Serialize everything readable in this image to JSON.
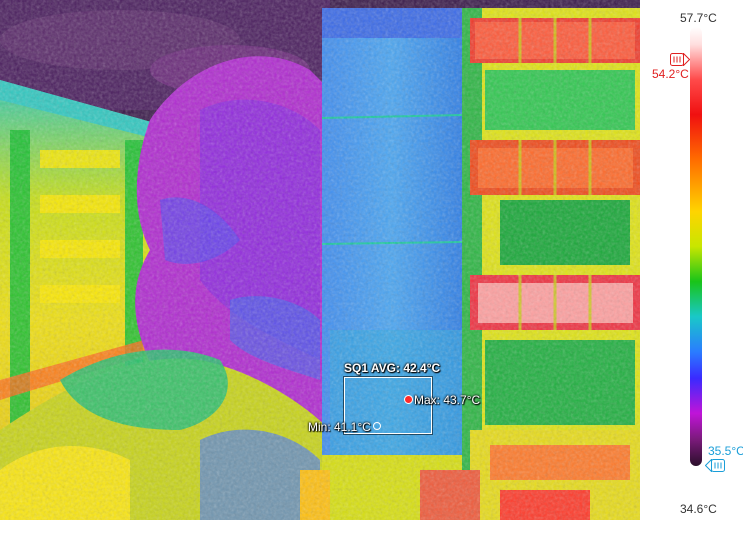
{
  "scale": {
    "max_label": "57.7°C",
    "min_label": "34.6°C",
    "high_marker_label": "54.2°C",
    "low_marker_label": "35.5°C"
  },
  "roi": {
    "title": "SQ1 AVG: 42.4°C",
    "max_label": "Max: 43.7°C",
    "min_label": "Min: 41.1°C"
  },
  "colors": {
    "hot": "#ff2a2a",
    "cold": "#1a9ed8",
    "overlay_text": "#ffffff"
  }
}
